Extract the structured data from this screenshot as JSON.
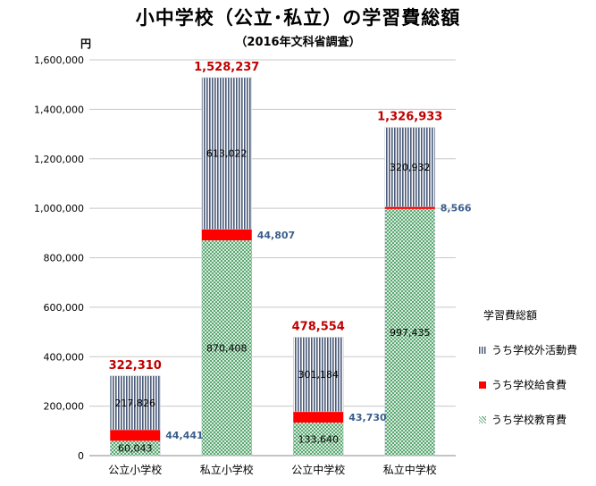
{
  "chart_data": {
    "type": "bar",
    "stacked": true,
    "title": "小中学校（公立･私立）の学習費総額",
    "subtitle": "（2016年文科省調査）",
    "ylabel": "円",
    "ylim": [
      0,
      1600000
    ],
    "yticks": [
      "0",
      "200,000",
      "400,000",
      "600,000",
      "800,000",
      "1,000,000",
      "1,200,000",
      "1,400,000",
      "1,600,000"
    ],
    "grid": true,
    "legend_title": "学習費総額",
    "legend_position": "right",
    "categories": [
      "公立小学校",
      "私立小学校",
      "公立中学校",
      "私立中学校"
    ],
    "series": [
      {
        "name": "うち学校教育費",
        "values": [
          60043,
          870408,
          133640,
          997435
        ],
        "labels": [
          "60,043",
          "870,408",
          "133,640",
          "997,435"
        ],
        "color": "#3f9a5a"
      },
      {
        "name": "うち学校給食費",
        "values": [
          44441,
          44807,
          43730,
          8566
        ],
        "labels": [
          "44,441",
          "44,807",
          "43,730",
          "8,566"
        ],
        "color": "#ff0000"
      },
      {
        "name": "うち学校外活動費",
        "values": [
          217826,
          613022,
          301184,
          320932
        ],
        "labels": [
          "217,826",
          "613,022",
          "301,184",
          "320,932"
        ],
        "color": "#4a5a78"
      }
    ],
    "totals": [
      322310,
      1528237,
      478554,
      1326933
    ],
    "total_labels": [
      "322,310",
      "1,528,237",
      "478,554",
      "1,326,933"
    ],
    "colors": {
      "total_label": "#c00000",
      "callout_label": "#3a5e8c",
      "grid": "#c8c8c8"
    }
  }
}
